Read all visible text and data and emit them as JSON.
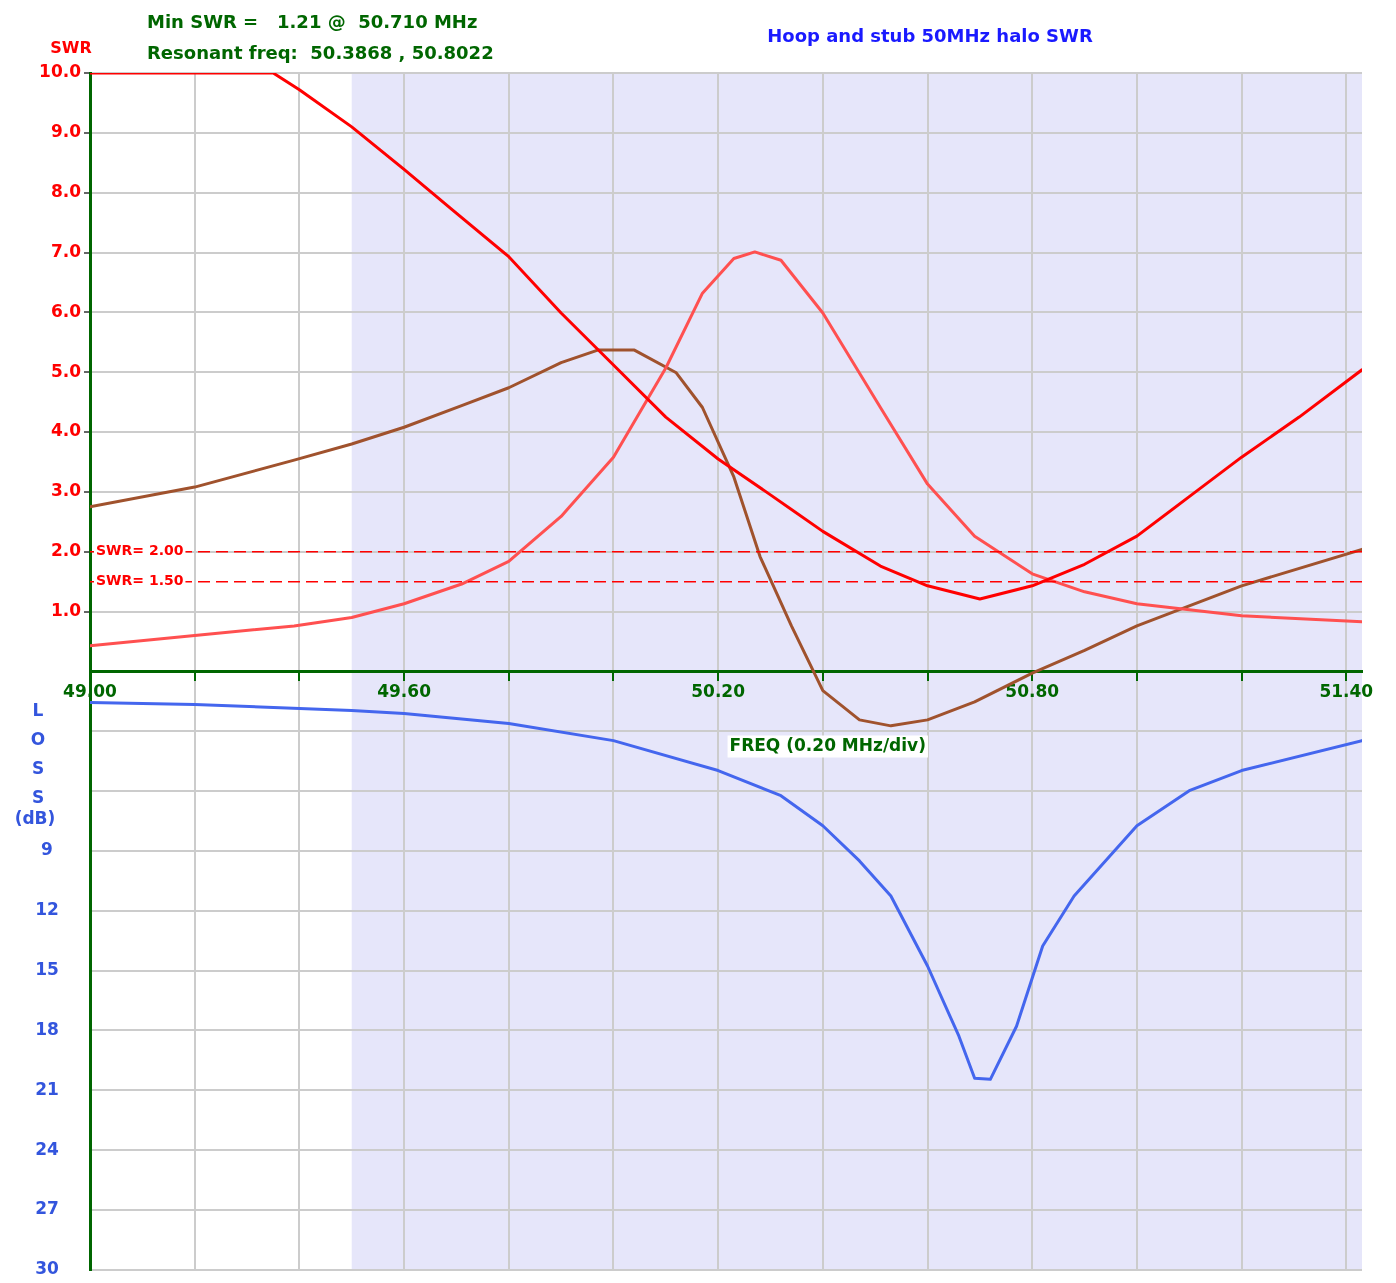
{
  "chart_data": {
    "type": "line",
    "title": "Hoop and stub 50MHz halo SWR",
    "ylabel": "SWR",
    "y2label": "LOSS (dB)",
    "xlabel": "FREQ (0.20 MHz/div)",
    "annotations": [
      "Min SWR =   1.21 @  50.710 MHz",
      "Resonant freq:  50.3868 , 50.8022"
    ],
    "xlim": [
      49.0,
      51.43
    ],
    "xticks": [
      {
        "value": 49.0,
        "label": "49.00"
      },
      {
        "value": 49.2,
        "label": null
      },
      {
        "value": 49.4,
        "label": null
      },
      {
        "value": 49.6,
        "label": "49.60"
      },
      {
        "value": 49.8,
        "label": null
      },
      {
        "value": 50.0,
        "label": null
      },
      {
        "value": 50.2,
        "label": "50.20"
      },
      {
        "value": 50.4,
        "label": null
      },
      {
        "value": 50.6,
        "label": null
      },
      {
        "value": 50.8,
        "label": "50.80"
      },
      {
        "value": 51.0,
        "label": null
      },
      {
        "value": 51.2,
        "label": null
      },
      {
        "value": 51.4,
        "label": "51.40"
      }
    ],
    "ylim": [
      -10,
      10
    ],
    "yticks": [
      {
        "value": 1,
        "label": "1.0"
      },
      {
        "value": 2,
        "label": "2.0"
      },
      {
        "value": 3,
        "label": "3.0"
      },
      {
        "value": 4,
        "label": "4.0"
      },
      {
        "value": 5,
        "label": "5.0"
      },
      {
        "value": 6,
        "label": "6.0"
      },
      {
        "value": 7,
        "label": "7.0"
      },
      {
        "value": 8,
        "label": "8.0"
      },
      {
        "value": 9,
        "label": "9.0"
      },
      {
        "value": 10,
        "label": "10.0"
      }
    ],
    "y2lim": [
      30,
      -30
    ],
    "y2ticks": [
      {
        "value": 3,
        "label": null
      },
      {
        "value": 6,
        "label": null
      },
      9,
      12,
      15,
      18,
      21,
      24,
      27,
      30
    ],
    "grid": true,
    "legend": false,
    "marker": "none",
    "line_style": "solid",
    "bands": [
      {
        "axis": "x",
        "from": 49.5,
        "to": 51.43,
        "color": "#e6e6fa"
      }
    ],
    "ref_lines": [
      {
        "axis": "y",
        "value": 2,
        "label": "SWR= 2.00",
        "color": "#ff0000",
        "line_style": "dashed"
      },
      {
        "axis": "y",
        "value": 1.5,
        "label": "SWR= 1.50",
        "color": "#ff0000",
        "line_style": "dashed"
      }
    ],
    "series": [
      {
        "color": "#ff0000",
        "x": [
          49.0,
          49.35,
          49.4,
          49.5,
          49.6,
          49.69,
          49.8,
          49.9,
          50.0,
          50.1,
          50.2,
          50.3,
          50.4,
          50.51,
          50.6,
          50.7,
          50.8,
          50.9,
          51.0,
          51.1,
          51.2,
          51.31,
          51.43
        ],
        "values": [
          10,
          10,
          9.72,
          9.1,
          8.39,
          7.73,
          6.93,
          5.99,
          5.12,
          4.25,
          3.55,
          2.95,
          2.34,
          1.76,
          1.43,
          1.21,
          1.43,
          1.79,
          2.26,
          2.92,
          3.58,
          4.25,
          5.04
        ]
      },
      {
        "color": "#ff5050",
        "x": [
          49.0,
          49.2,
          49.39,
          49.5,
          49.6,
          49.71,
          49.8,
          49.9,
          50.0,
          50.1,
          50.17,
          50.23,
          50.27,
          50.32,
          50.4,
          50.51,
          50.6,
          50.69,
          50.8,
          50.9,
          51.0,
          51.2,
          51.43
        ],
        "values": [
          0.43,
          0.6,
          0.76,
          0.9,
          1.13,
          1.46,
          1.84,
          2.59,
          3.58,
          5.07,
          6.32,
          6.9,
          7.01,
          6.87,
          5.99,
          4.41,
          3.13,
          2.26,
          1.63,
          1.33,
          1.13,
          0.93,
          0.83
        ]
      },
      {
        "color": "#a0522d",
        "x": [
          49.0,
          49.2,
          49.39,
          49.5,
          49.6,
          49.71,
          49.8,
          49.9,
          49.97,
          50.04,
          50.12,
          50.17,
          50.23,
          50.28,
          50.34,
          50.4,
          50.47,
          50.53,
          50.6,
          50.69,
          50.8,
          50.9,
          51.0,
          51.2,
          51.43
        ],
        "values": [
          2.75,
          3.08,
          3.53,
          3.8,
          4.08,
          4.44,
          4.74,
          5.16,
          5.37,
          5.37,
          4.99,
          4.41,
          3.25,
          1.92,
          0.76,
          -0.32,
          -0.81,
          -0.91,
          -0.81,
          -0.51,
          -0.03,
          0.35,
          0.76,
          1.43,
          2.04
        ]
      },
      {
        "color": "#4466ee",
        "axis": "y2",
        "x": [
          49.0,
          49.2,
          49.5,
          49.6,
          49.8,
          50.0,
          50.2,
          50.32,
          50.4,
          50.47,
          50.53,
          50.6,
          50.66,
          50.69,
          50.72,
          50.77,
          50.82,
          50.88,
          51.0,
          51.1,
          51.2,
          51.43
        ],
        "values": [
          1.56,
          1.66,
          1.96,
          2.11,
          2.61,
          3.47,
          4.97,
          6.23,
          7.74,
          9.5,
          11.26,
          14.77,
          18.29,
          20.4,
          20.45,
          17.79,
          13.77,
          11.26,
          7.74,
          5.98,
          4.97,
          3.47
        ]
      }
    ]
  }
}
